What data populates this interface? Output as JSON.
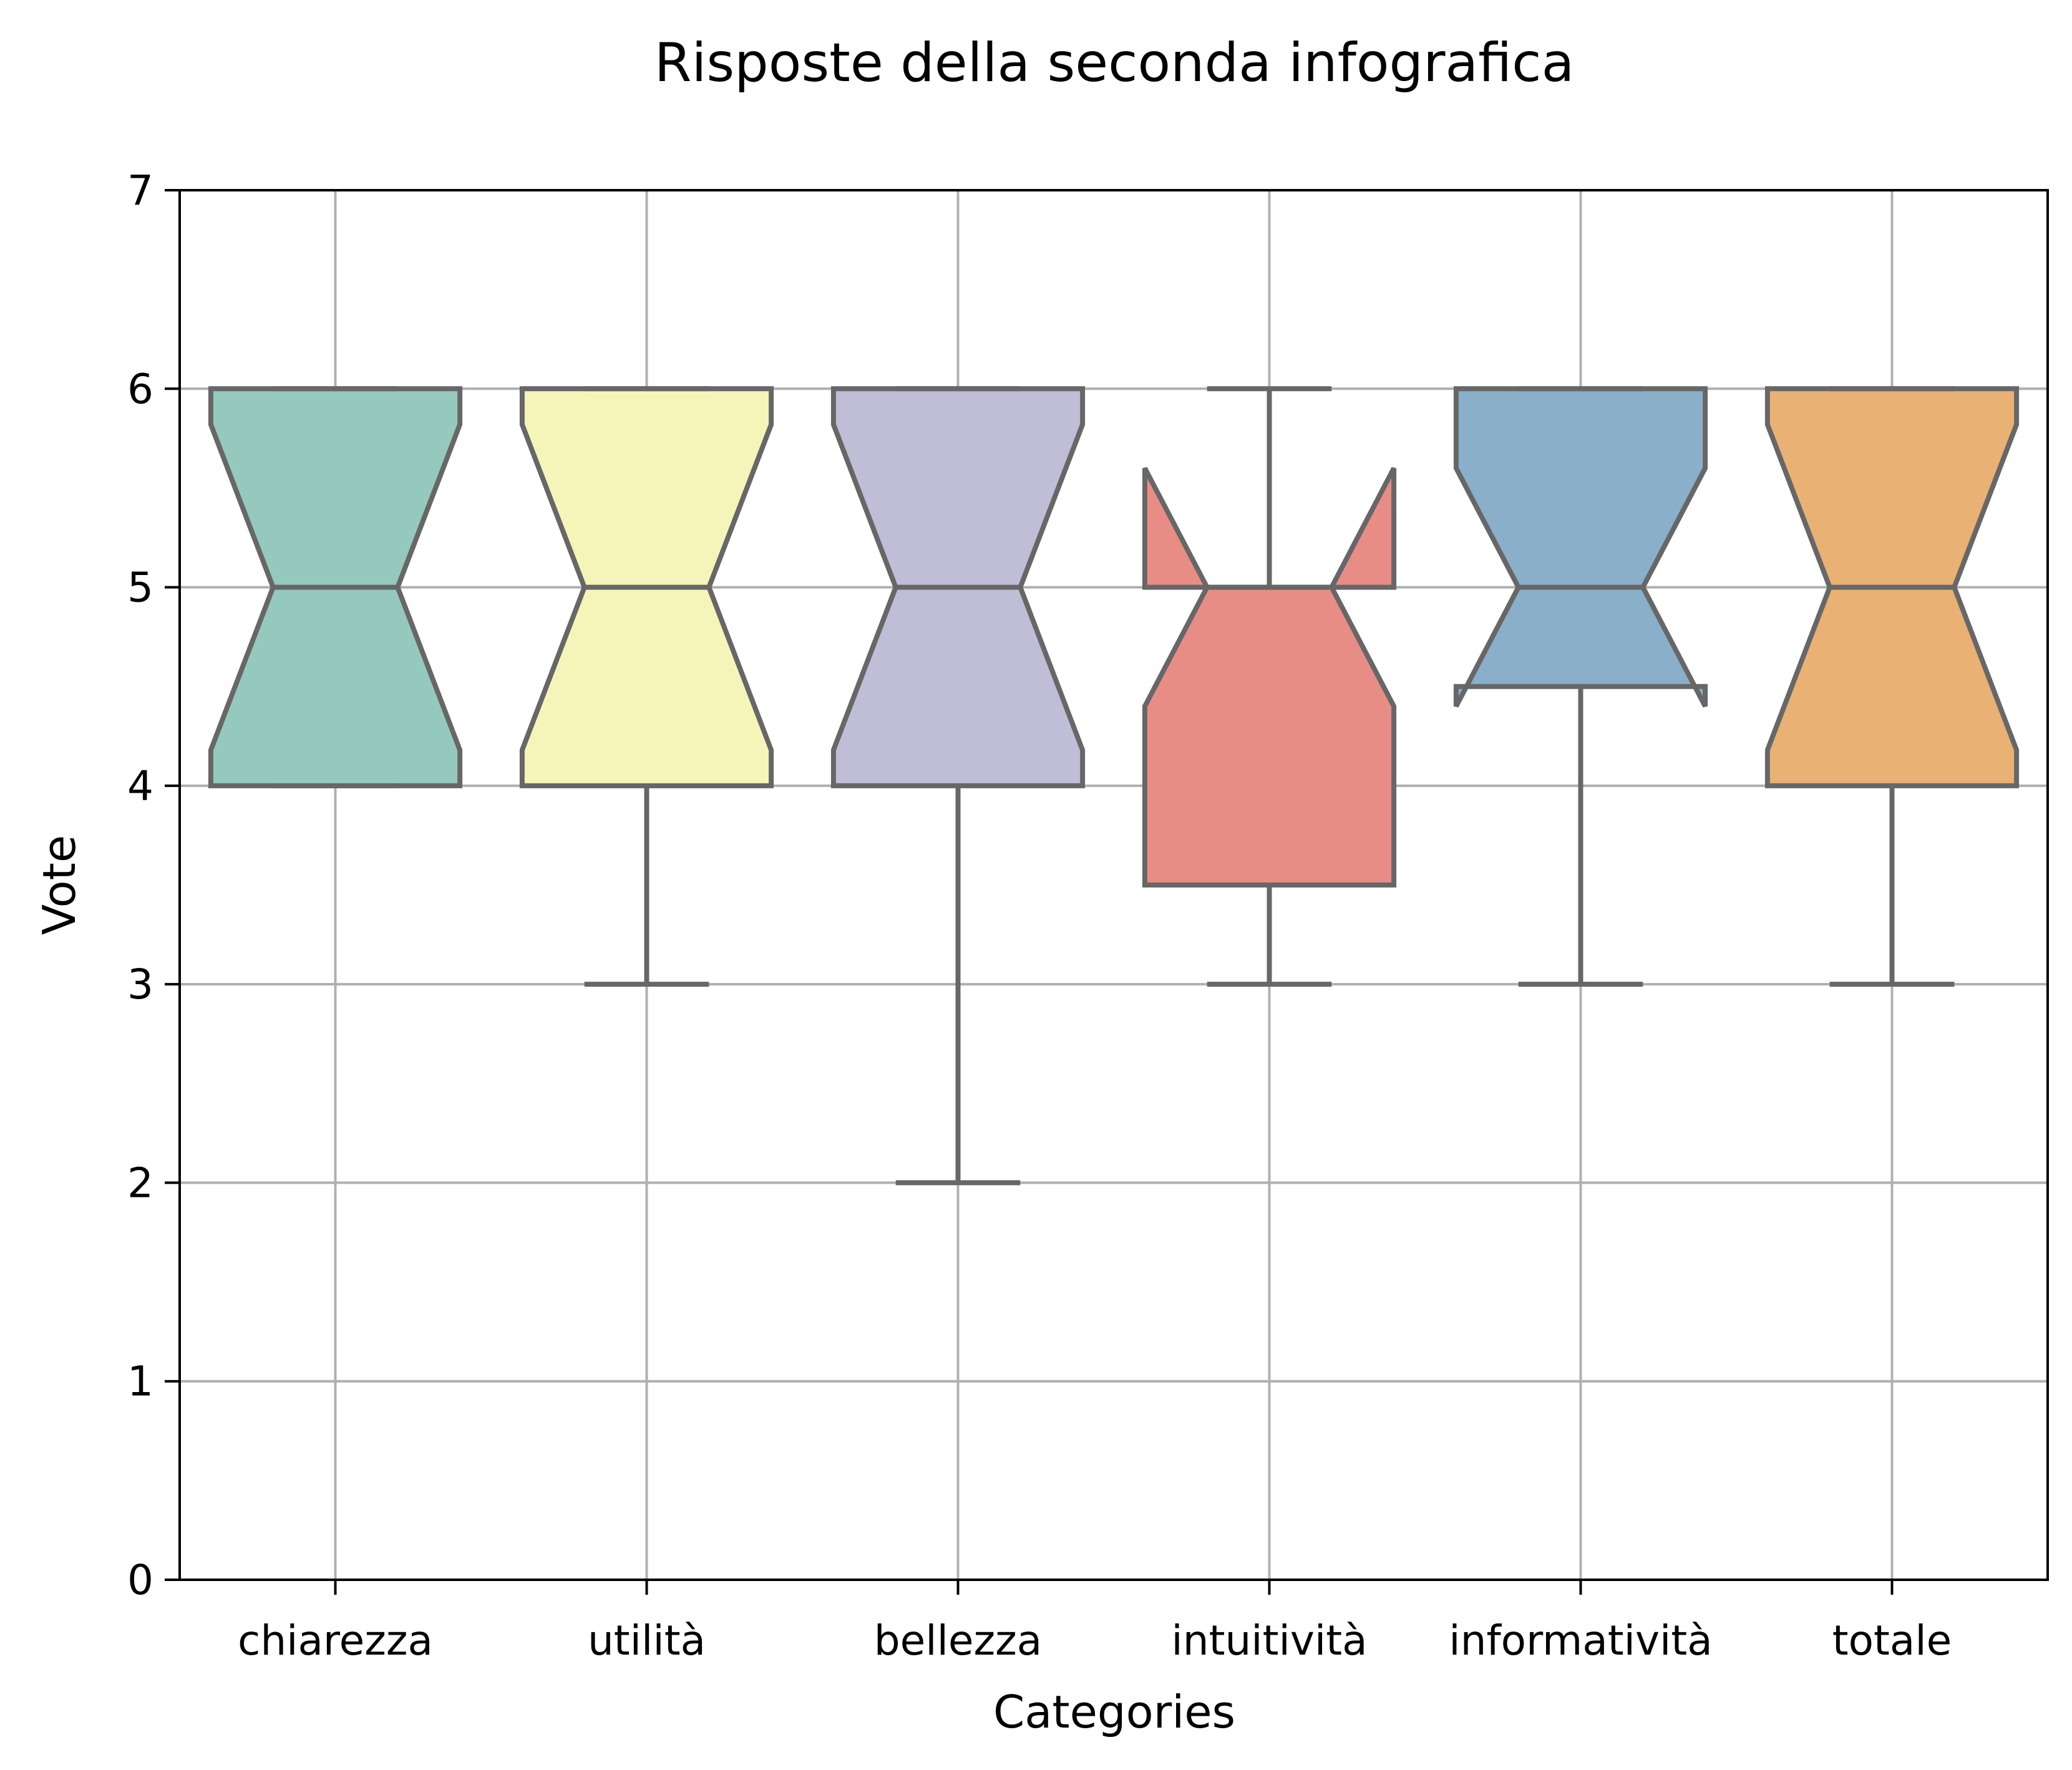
{
  "chart_data": {
    "type": "boxplot",
    "title": "Risposte della seconda infografica",
    "xlabel": "Categories",
    "ylabel": "Vote",
    "ylim": [
      0,
      7
    ],
    "yticks": [
      0,
      1,
      2,
      3,
      4,
      5,
      6,
      7
    ],
    "grid": true,
    "notched": true,
    "categories": [
      "chiarezza",
      "utilità",
      "bellezza",
      "intuitività",
      "informatività",
      "totale"
    ],
    "boxes": [
      {
        "name": "chiarezza",
        "whisker_low": 4,
        "q1": 4,
        "median": 5,
        "q3": 6,
        "whisker_high": 6,
        "notch_low": 4.18,
        "notch_high": 5.82,
        "color": "#96c9be"
      },
      {
        "name": "utilità",
        "whisker_low": 3,
        "q1": 4,
        "median": 5,
        "q3": 6,
        "whisker_high": 6,
        "notch_low": 4.18,
        "notch_high": 5.82,
        "color": "#f5f5ba"
      },
      {
        "name": "bellezza",
        "whisker_low": 2,
        "q1": 4,
        "median": 5,
        "q3": 6,
        "whisker_high": 6,
        "notch_low": 4.18,
        "notch_high": 5.82,
        "color": "#c0bdd6"
      },
      {
        "name": "intuitività",
        "whisker_low": 3,
        "q1": 3.5,
        "median": 5,
        "q3": 5,
        "whisker_high": 6,
        "notch_low": 4.4,
        "notch_high": 5.6,
        "color": "#e88d85"
      },
      {
        "name": "informatività",
        "whisker_low": 3,
        "q1": 4.5,
        "median": 5,
        "q3": 6,
        "whisker_high": 6,
        "notch_low": 4.4,
        "notch_high": 5.6,
        "color": "#8aafca"
      },
      {
        "name": "totale",
        "whisker_low": 3,
        "q1": 4,
        "median": 5,
        "q3": 6,
        "whisker_high": 6,
        "notch_low": 4.18,
        "notch_high": 5.82,
        "color": "#e9b174"
      }
    ],
    "colors": {
      "line": "#676767",
      "grid": "#b0b0b0",
      "axes": "#000000"
    }
  }
}
